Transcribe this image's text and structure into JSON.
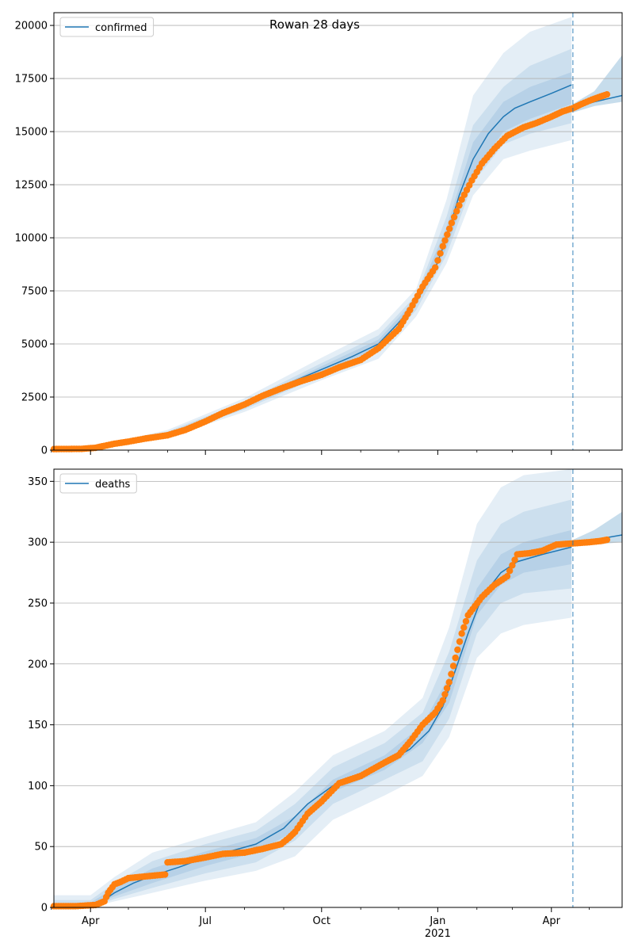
{
  "figure": {
    "title": "Rowan 28 days"
  },
  "colors": {
    "model": "#1f77b4",
    "observed": "#ff7f0e",
    "band": "#1f77b4",
    "grid": "#b0b0b0",
    "forecast_line": "#1f77b4"
  },
  "x_axis": {
    "major_ticks": [
      {
        "date": "2020-04-01",
        "label": "Apr"
      },
      {
        "date": "2020-07-01",
        "label": "Jul"
      },
      {
        "date": "2020-10-01",
        "label": "Oct"
      },
      {
        "date": "2021-01-01",
        "label": "Jan"
      },
      {
        "date": "2021-04-01",
        "label": "Apr"
      }
    ],
    "year_label": {
      "date": "2021-01-01",
      "label": "2021"
    },
    "minor_ticks": [
      "2020-03-01",
      "2020-05-01",
      "2020-06-01",
      "2020-08-01",
      "2020-09-01",
      "2020-11-01",
      "2020-12-01",
      "2021-02-01",
      "2021-03-01",
      "2021-05-01"
    ],
    "xlim": [
      "2020-03-03",
      "2021-05-27"
    ]
  },
  "chart_data": [
    {
      "type": "line",
      "panel": "confirmed",
      "legend": [
        "confirmed"
      ],
      "legend_position": "top-left",
      "grid": "horizontal",
      "ylim": [
        0,
        20600
      ],
      "yticks": [
        0,
        2500,
        5000,
        7500,
        10000,
        12500,
        15000,
        17500,
        20000
      ],
      "forecast_date": "2021-04-18",
      "model": {
        "name": "confirmed",
        "x": [
          "2020-03-03",
          "2020-03-20",
          "2020-04-05",
          "2020-04-20",
          "2020-05-10",
          "2020-06-01",
          "2020-07-01",
          "2020-08-01",
          "2020-08-21",
          "2020-09-11",
          "2020-10-01",
          "2020-10-25",
          "2020-11-15",
          "2020-12-01",
          "2020-12-15",
          "2020-12-29",
          "2021-01-08",
          "2021-01-18",
          "2021-01-29",
          "2021-02-10",
          "2021-02-22",
          "2021-03-03",
          "2021-03-15",
          "2021-04-01",
          "2021-04-17"
        ],
        "y": [
          20,
          30,
          100,
          230,
          450,
          750,
          1400,
          2100,
          2750,
          3300,
          3800,
          4400,
          5000,
          6000,
          7000,
          8400,
          10000,
          12000,
          13700,
          14900,
          15700,
          16100,
          16400,
          16800,
          17200
        ]
      },
      "model_tail": {
        "x": [
          "2021-04-18",
          "2021-05-05",
          "2021-05-27"
        ],
        "y": [
          16100,
          16400,
          16700
        ]
      },
      "bands": [
        {
          "level": "outer",
          "x": [
            "2020-03-03",
            "2020-04-05",
            "2020-06-01",
            "2020-08-01",
            "2020-10-01",
            "2020-11-15",
            "2020-12-15",
            "2021-01-08",
            "2021-01-29",
            "2021-02-22",
            "2021-03-15",
            "2021-04-17"
          ],
          "upper": [
            60,
            180,
            950,
            2450,
            4350,
            5700,
            7600,
            11800,
            16700,
            18700,
            19700,
            20400
          ],
          "lower": [
            5,
            50,
            600,
            1800,
            3300,
            4300,
            6300,
            8800,
            12000,
            13700,
            14100,
            14600
          ]
        },
        {
          "level": "mid",
          "x": [
            "2020-03-03",
            "2020-04-05",
            "2020-06-01",
            "2020-08-01",
            "2020-10-01",
            "2020-11-15",
            "2020-12-15",
            "2021-01-08",
            "2021-01-29",
            "2021-02-22",
            "2021-03-15",
            "2021-04-17"
          ],
          "upper": [
            45,
            150,
            870,
            2300,
            4100,
            5400,
            7300,
            11000,
            15300,
            17100,
            18100,
            18900
          ],
          "lower": [
            10,
            65,
            660,
            1920,
            3500,
            4600,
            6600,
            9200,
            12600,
            14400,
            14900,
            15400
          ]
        },
        {
          "level": "inner",
          "x": [
            "2020-03-03",
            "2020-04-05",
            "2020-06-01",
            "2020-08-01",
            "2020-10-01",
            "2020-11-15",
            "2020-12-15",
            "2021-01-08",
            "2021-01-29",
            "2021-02-22",
            "2021-03-15",
            "2021-04-17"
          ],
          "upper": [
            32,
            125,
            810,
            2200,
            3950,
            5200,
            7150,
            10500,
            14500,
            16400,
            17100,
            17800
          ],
          "lower": [
            14,
            80,
            700,
            2000,
            3650,
            4800,
            6850,
            9500,
            13000,
            15000,
            15600,
            16300
          ]
        }
      ],
      "tail_band": {
        "x": [
          "2021-04-18",
          "2021-05-05",
          "2021-05-27"
        ],
        "upper": [
          16300,
          16900,
          18600
        ],
        "lower": [
          15900,
          16200,
          16400
        ]
      },
      "observed": {
        "x": [
          "2020-03-03",
          "2020-03-25",
          "2020-04-05",
          "2020-04-12",
          "2020-04-20",
          "2020-05-01",
          "2020-05-15",
          "2020-06-01",
          "2020-06-15",
          "2020-07-01",
          "2020-07-15",
          "2020-08-01",
          "2020-08-15",
          "2020-09-01",
          "2020-09-15",
          "2020-10-01",
          "2020-10-15",
          "2020-11-01",
          "2020-11-15",
          "2020-12-01",
          "2020-12-10",
          "2020-12-20",
          "2020-12-30",
          "2021-01-05",
          "2021-01-12",
          "2021-01-20",
          "2021-01-28",
          "2021-02-05",
          "2021-02-15",
          "2021-02-25",
          "2021-03-10",
          "2021-03-20",
          "2021-04-01",
          "2021-04-10",
          "2021-04-18",
          "2021-04-25",
          "2021-05-03",
          "2021-05-10",
          "2021-05-15"
        ],
        "y": [
          50,
          60,
          110,
          200,
          300,
          400,
          550,
          700,
          950,
          1350,
          1750,
          2150,
          2550,
          2950,
          3250,
          3550,
          3900,
          4250,
          4800,
          5700,
          6600,
          7700,
          8600,
          9600,
          10700,
          11800,
          12700,
          13500,
          14200,
          14800,
          15200,
          15400,
          15700,
          15950,
          16100,
          16300,
          16500,
          16650,
          16750
        ]
      }
    },
    {
      "type": "line",
      "panel": "deaths",
      "legend": [
        "deaths"
      ],
      "legend_position": "top-left",
      "grid": "horizontal",
      "ylim": [
        0,
        360
      ],
      "yticks": [
        0,
        50,
        100,
        150,
        200,
        250,
        300,
        350
      ],
      "forecast_date": "2021-04-18",
      "model": {
        "name": "deaths",
        "x": [
          "2020-04-01",
          "2020-04-10",
          "2020-04-20",
          "2020-05-05",
          "2020-05-20",
          "2020-06-10",
          "2020-07-01",
          "2020-07-20",
          "2020-08-10",
          "2020-09-01",
          "2020-09-20",
          "2020-10-10",
          "2020-11-01",
          "2020-11-20",
          "2020-12-10",
          "2020-12-25",
          "2021-01-05",
          "2021-01-15",
          "2021-01-25",
          "2021-02-05",
          "2021-02-20",
          "2021-03-05",
          "2021-03-25",
          "2021-04-17"
        ],
        "y": [
          2,
          5,
          12,
          20,
          26,
          33,
          41,
          46,
          52,
          65,
          85,
          100,
          110,
          118,
          130,
          145,
          165,
          195,
          225,
          255,
          275,
          284,
          290,
          296
        ]
      },
      "model_tail": {
        "x": [
          "2021-04-18",
          "2021-05-05",
          "2021-05-27"
        ],
        "y": [
          299,
          302,
          306
        ]
      },
      "bands": [
        {
          "level": "outer",
          "x": [
            "2020-03-03",
            "2020-04-01",
            "2020-04-20",
            "2020-05-20",
            "2020-07-01",
            "2020-08-10",
            "2020-09-10",
            "2020-10-10",
            "2020-11-20",
            "2020-12-20",
            "2021-01-10",
            "2021-02-01",
            "2021-02-20",
            "2021-03-10",
            "2021-04-17"
          ],
          "upper": [
            10,
            10,
            25,
            45,
            58,
            70,
            95,
            125,
            145,
            172,
            230,
            315,
            345,
            355,
            360
          ],
          "lower": [
            0,
            0,
            5,
            12,
            22,
            30,
            42,
            72,
            92,
            108,
            140,
            205,
            225,
            232,
            238
          ]
        },
        {
          "level": "mid",
          "x": [
            "2020-03-03",
            "2020-04-01",
            "2020-04-20",
            "2020-05-20",
            "2020-07-01",
            "2020-08-10",
            "2020-09-10",
            "2020-10-10",
            "2020-11-20",
            "2020-12-20",
            "2021-01-10",
            "2021-02-01",
            "2021-02-20",
            "2021-03-10",
            "2021-04-17"
          ],
          "upper": [
            6,
            6,
            20,
            38,
            52,
            63,
            85,
            115,
            135,
            160,
            210,
            285,
            315,
            325,
            335
          ],
          "lower": [
            0,
            0,
            7,
            16,
            28,
            37,
            55,
            85,
            105,
            120,
            155,
            225,
            250,
            258,
            262
          ]
        },
        {
          "level": "inner",
          "x": [
            "2020-03-03",
            "2020-04-01",
            "2020-04-20",
            "2020-05-20",
            "2020-07-01",
            "2020-08-10",
            "2020-09-10",
            "2020-10-10",
            "2020-11-20",
            "2020-12-20",
            "2021-01-10",
            "2021-02-01",
            "2021-02-20",
            "2021-03-10",
            "2021-04-17"
          ],
          "upper": [
            3,
            4,
            16,
            32,
            46,
            57,
            75,
            105,
            125,
            150,
            190,
            262,
            290,
            300,
            310
          ],
          "lower": [
            0,
            1,
            9,
            20,
            34,
            45,
            63,
            95,
            113,
            135,
            168,
            240,
            265,
            275,
            282
          ]
        }
      ],
      "tail_band": {
        "x": [
          "2021-04-18",
          "2021-05-05",
          "2021-05-27"
        ],
        "upper": [
          302,
          310,
          325
        ],
        "lower": [
          297,
          298,
          300
        ]
      },
      "observed": {
        "x": [
          "2020-03-03",
          "2020-03-20",
          "2020-04-05",
          "2020-04-12",
          "2020-04-15",
          "2020-04-20",
          "2020-04-25",
          "2020-05-01",
          "2020-05-10",
          "2020-05-20",
          "2020-05-30",
          "2020-06-01",
          "2020-06-15",
          "2020-07-01",
          "2020-07-15",
          "2020-08-01",
          "2020-08-15",
          "2020-08-30",
          "2020-09-05",
          "2020-09-10",
          "2020-09-20",
          "2020-10-01",
          "2020-10-15",
          "2020-11-01",
          "2020-11-20",
          "2020-12-01",
          "2020-12-10",
          "2020-12-20",
          "2020-12-30",
          "2021-01-05",
          "2021-01-10",
          "2021-01-15",
          "2021-01-20",
          "2021-01-25",
          "2021-02-05",
          "2021-02-15",
          "2021-02-25",
          "2021-03-05",
          "2021-03-15",
          "2021-03-25",
          "2021-04-05",
          "2021-04-18",
          "2021-05-01",
          "2021-05-10",
          "2021-05-15"
        ],
        "y": [
          1,
          1,
          2,
          5,
          12,
          19,
          21,
          24,
          25,
          26,
          27,
          37,
          38,
          41,
          44,
          45,
          48,
          52,
          57,
          62,
          77,
          87,
          102,
          108,
          119,
          125,
          136,
          150,
          160,
          170,
          185,
          205,
          225,
          240,
          255,
          265,
          272,
          290,
          291,
          293,
          298,
          299,
          300,
          301,
          302
        ]
      }
    }
  ]
}
